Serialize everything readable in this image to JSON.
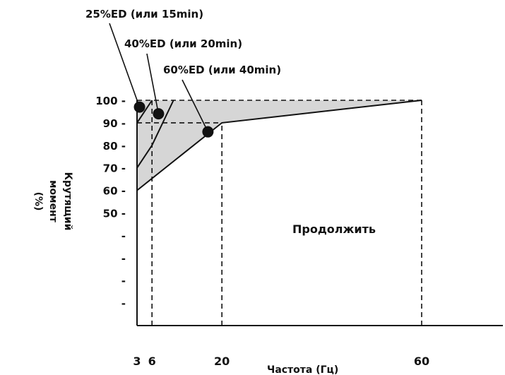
{
  "chart_data": {
    "type": "line",
    "xlabel": "Частота (Гц)",
    "ylabel": [
      "Крутящий",
      "момент",
      "(%)"
    ],
    "x_ticks": [
      {
        "value": 3,
        "label": "3"
      },
      {
        "value": 6,
        "label": "6"
      },
      {
        "value": 20,
        "label": "20"
      },
      {
        "value": 60,
        "label": "60"
      }
    ],
    "y_ticks": [
      {
        "value": 100,
        "label": "100 -"
      },
      {
        "value": 90,
        "label": "90 -"
      },
      {
        "value": 80,
        "label": "80 -"
      },
      {
        "value": 70,
        "label": "70 -"
      },
      {
        "value": 60,
        "label": "60 -"
      },
      {
        "value": 50,
        "label": "50 -"
      },
      {
        "value": 40,
        "label": "-"
      },
      {
        "value": 30,
        "label": "-"
      },
      {
        "value": 20,
        "label": "-"
      },
      {
        "value": 10,
        "label": "-"
      }
    ],
    "series": [
      {
        "name": "25%ED (или 15min)",
        "points": [
          [
            3,
            90
          ],
          [
            6,
            100
          ]
        ]
      },
      {
        "name": "40%ED (или 20min)",
        "points": [
          [
            3,
            70
          ],
          [
            6,
            80
          ],
          [
            10.3,
            100
          ]
        ]
      },
      {
        "name": "60%ED (или 40min)",
        "points": [
          [
            3,
            60
          ],
          [
            20,
            90
          ],
          [
            60,
            100
          ]
        ]
      }
    ],
    "markers": [
      {
        "series": "25%ED (или 15min)",
        "x": 3.5,
        "y": 97
      },
      {
        "series": "40%ED (или 20min)",
        "x": 7.3,
        "y": 94
      },
      {
        "series": "60%ED (или 40min)",
        "x": 17.2,
        "y": 86
      }
    ],
    "reference_lines": [
      {
        "kind": "horizontal",
        "y": 100,
        "x": [
          3,
          60
        ],
        "style": "dashed"
      },
      {
        "kind": "horizontal",
        "y": 90,
        "x": [
          3,
          20
        ],
        "style": "dashed"
      },
      {
        "kind": "vertical",
        "x": 6,
        "y": [
          0,
          100
        ],
        "style": "dashed"
      },
      {
        "kind": "vertical",
        "x": 20,
        "y": [
          0,
          90
        ],
        "style": "dashed"
      },
      {
        "kind": "vertical",
        "x": 60,
        "y": [
          0,
          100
        ],
        "style": "dashed"
      }
    ],
    "shaded_region": {
      "fill": "#d6d6d6",
      "between": "60%ED (или 40min)",
      "and_y": 100,
      "x": [
        3,
        60
      ]
    },
    "annotations": [
      {
        "text": "Продолжить",
        "x": 40,
        "y": 47
      }
    ],
    "xlim": [
      3,
      83
    ],
    "ylim": [
      0,
      100
    ],
    "colors": {
      "line": "#111111",
      "shade": "#d6d6d6",
      "background": "#ffffff"
    }
  }
}
